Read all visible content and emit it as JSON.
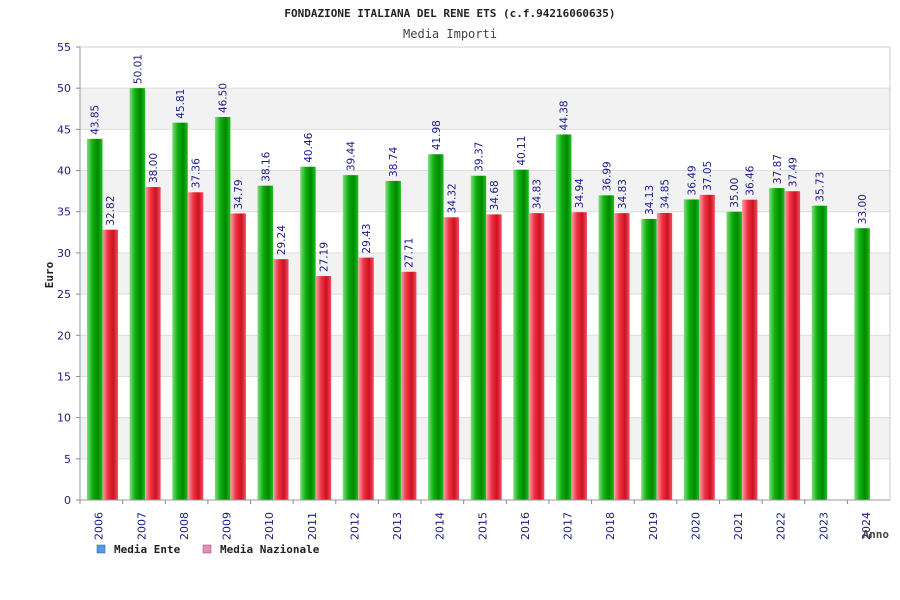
{
  "chart_data": {
    "type": "bar",
    "title": "FONDAZIONE ITALIANA DEL RENE ETS (c.f.94216060635)",
    "subtitle": "Media Importi",
    "ylabel": "Euro",
    "xlabel": "Anno",
    "ylim": [
      0,
      55
    ],
    "yticks": [
      0,
      5,
      10,
      15,
      20,
      25,
      30,
      35,
      40,
      45,
      50,
      55
    ],
    "grid": true,
    "legend_position": "bottom-left",
    "categories": [
      "2006",
      "2007",
      "2008",
      "2009",
      "2010",
      "2011",
      "2012",
      "2013",
      "2014",
      "2015",
      "2016",
      "2017",
      "2018",
      "2019",
      "2020",
      "2021",
      "2022",
      "2023",
      "2024"
    ],
    "series": [
      {
        "name": "Media Ente",
        "legend_color": "#5599ee",
        "bar_color": "#11aa11",
        "values": [
          43.85,
          50.01,
          45.81,
          46.5,
          38.16,
          40.46,
          39.44,
          38.74,
          41.98,
          39.37,
          40.11,
          44.38,
          36.99,
          34.13,
          36.49,
          35.0,
          37.87,
          35.73,
          33.0
        ],
        "labels": [
          "43.85",
          "50.01",
          "45.81",
          "46.50",
          "38.16",
          "40.46",
          "39.44",
          "38.74",
          "41.98",
          "39.37",
          "40.11",
          "44.38",
          "36.99",
          "34.13",
          "36.49",
          "35.00",
          "37.87",
          "35.73",
          "33.00"
        ]
      },
      {
        "name": "Media Nazionale",
        "legend_color": "#ee88bb",
        "bar_color": "#ee3344",
        "values": [
          32.82,
          38.0,
          37.36,
          34.79,
          29.24,
          27.19,
          29.43,
          27.71,
          34.32,
          34.68,
          34.83,
          34.94,
          34.83,
          34.85,
          37.05,
          36.46,
          37.49,
          null,
          null
        ],
        "labels": [
          "32.82",
          "38.00",
          "37.36",
          "34.79",
          "29.24",
          "27.19",
          "29.43",
          "27.71",
          "34.32",
          "34.68",
          "34.83",
          "34.94",
          "34.83",
          "34.85",
          "37.05",
          "36.46",
          "37.49",
          null,
          null
        ]
      }
    ]
  }
}
